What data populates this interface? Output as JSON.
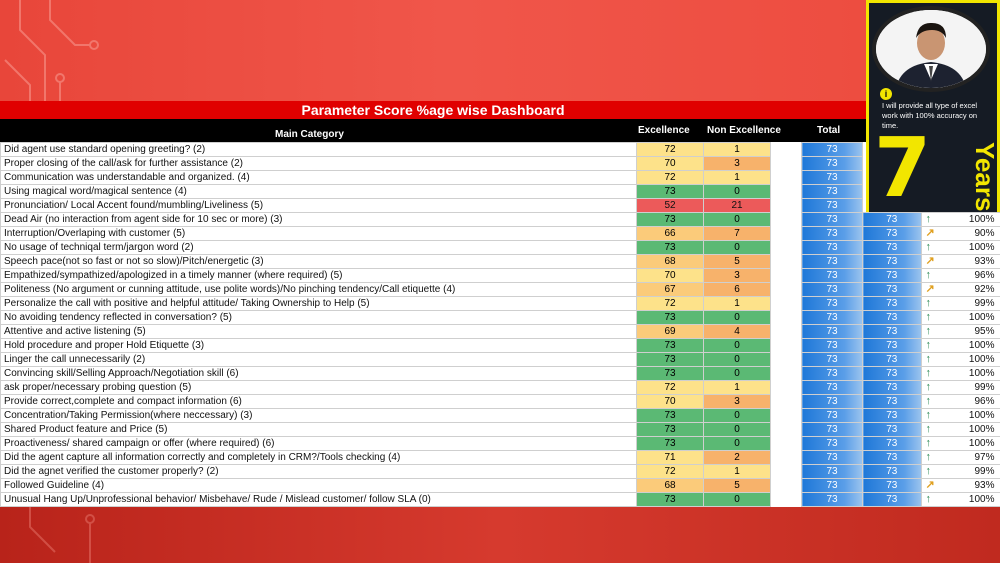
{
  "title": "Parameter Score %age wise Dashboard",
  "headers": {
    "main_category": "Main Category",
    "excellence": "Excellence",
    "non_excellence": "Non Excellence",
    "total": "Total"
  },
  "promo": {
    "info_icon": "i",
    "text": "I will provide all type of excel work with 100% accuracy on time.",
    "number": "7",
    "years": "Years"
  },
  "colors": {
    "header_red": "#e00000",
    "frame_yellow": "#f2e600",
    "total_blue": "#1f78d8",
    "excellence_green": "#5bb974",
    "excellence_yellow": "#fde28a",
    "excellence_red": "#ec5a5a"
  },
  "rows": [
    {
      "category": "Did agent use standard opening greeting? (2)",
      "excellence": "72",
      "non_excellence": "1",
      "total": "73"
    },
    {
      "category": "Proper closing of the call/ask for further assistance (2)",
      "excellence": "70",
      "non_excellence": "3",
      "total": "73"
    },
    {
      "category": "Communication was understandable and organized. (4)",
      "excellence": "72",
      "non_excellence": "1",
      "total": "73"
    },
    {
      "category": "Using magical word/magical sentence (4)",
      "excellence": "73",
      "non_excellence": "0",
      "total": "73"
    },
    {
      "category": "Pronunciation/ Local Accent found/mumbling/Liveliness (5)",
      "excellence": "52",
      "non_excellence": "21",
      "total": "73"
    },
    {
      "category": "Dead Air (no interaction from agent side for 10 sec or more) (3)",
      "excellence": "73",
      "non_excellence": "0",
      "total": "73",
      "total2": "73",
      "percent": "100%",
      "trend": "up"
    },
    {
      "category": "Interruption/Overlaping with customer (5)",
      "excellence": "66",
      "non_excellence": "7",
      "total": "73",
      "total2": "73",
      "percent": "90%",
      "trend": "mid"
    },
    {
      "category": "No usage of techniqal term/jargon word (2)",
      "excellence": "73",
      "non_excellence": "0",
      "total": "73",
      "total2": "73",
      "percent": "100%",
      "trend": "up"
    },
    {
      "category": "Speech pace(not so fast or not so slow)/Pitch/energetic (3)",
      "excellence": "68",
      "non_excellence": "5",
      "total": "73",
      "total2": "73",
      "percent": "93%",
      "trend": "mid"
    },
    {
      "category": "Empathized/sympathized/apologized in a timely manner (where required) (5)",
      "excellence": "70",
      "non_excellence": "3",
      "total": "73",
      "total2": "73",
      "percent": "96%",
      "trend": "up"
    },
    {
      "category": "Politeness (No argument or cunning attitude, use polite words)/No pinching tendency/Call etiquette (4)",
      "excellence": "67",
      "non_excellence": "6",
      "total": "73",
      "total2": "73",
      "percent": "92%",
      "trend": "mid"
    },
    {
      "category": "Personalize the call with positive and helpful attitude/ Taking Ownership to Help (5)",
      "excellence": "72",
      "non_excellence": "1",
      "total": "73",
      "total2": "73",
      "percent": "99%",
      "trend": "up"
    },
    {
      "category": "No avoiding tendency reflected in conversation? (5)",
      "excellence": "73",
      "non_excellence": "0",
      "total": "73",
      "total2": "73",
      "percent": "100%",
      "trend": "up"
    },
    {
      "category": "Attentive and active listening (5)",
      "excellence": "69",
      "non_excellence": "4",
      "total": "73",
      "total2": "73",
      "percent": "95%",
      "trend": "up"
    },
    {
      "category": "Hold procedure and proper Hold Etiquette (3)",
      "excellence": "73",
      "non_excellence": "0",
      "total": "73",
      "total2": "73",
      "percent": "100%",
      "trend": "up"
    },
    {
      "category": "Linger the call unnecessarily (2)",
      "excellence": "73",
      "non_excellence": "0",
      "total": "73",
      "total2": "73",
      "percent": "100%",
      "trend": "up"
    },
    {
      "category": "Convincing skill/Selling Approach/Negotiation skill (6)",
      "excellence": "73",
      "non_excellence": "0",
      "total": "73",
      "total2": "73",
      "percent": "100%",
      "trend": "up"
    },
    {
      "category": "ask proper/necessary probing question (5)",
      "excellence": "72",
      "non_excellence": "1",
      "total": "73",
      "total2": "73",
      "percent": "99%",
      "trend": "up"
    },
    {
      "category": "Provide correct,complete and compact information (6)",
      "excellence": "70",
      "non_excellence": "3",
      "total": "73",
      "total2": "73",
      "percent": "96%",
      "trend": "up"
    },
    {
      "category": "Concentration/Taking Permission(where neccessary) (3)",
      "excellence": "73",
      "non_excellence": "0",
      "total": "73",
      "total2": "73",
      "percent": "100%",
      "trend": "up"
    },
    {
      "category": "Shared Product feature and Price (5)",
      "excellence": "73",
      "non_excellence": "0",
      "total": "73",
      "total2": "73",
      "percent": "100%",
      "trend": "up"
    },
    {
      "category": "Proactiveness/ shared campaign or offer (where required) (6)",
      "excellence": "73",
      "non_excellence": "0",
      "total": "73",
      "total2": "73",
      "percent": "100%",
      "trend": "up"
    },
    {
      "category": "Did the agent capture all information correctly and completely in CRM?/Tools checking (4)",
      "excellence": "71",
      "non_excellence": "2",
      "total": "73",
      "total2": "73",
      "percent": "97%",
      "trend": "up"
    },
    {
      "category": "Did the agnet verified the customer properly? (2)",
      "excellence": "72",
      "non_excellence": "1",
      "total": "73",
      "total2": "73",
      "percent": "99%",
      "trend": "up"
    },
    {
      "category": "Followed Guideline (4)",
      "excellence": "68",
      "non_excellence": "5",
      "total": "73",
      "total2": "73",
      "percent": "93%",
      "trend": "mid"
    },
    {
      "category": "Unusual Hang Up/Unprofessional behavior/ Misbehave/ Rude / Mislead customer/ follow SLA (0)",
      "excellence": "73",
      "non_excellence": "0",
      "total": "73",
      "total2": "73",
      "percent": "100%",
      "trend": "up"
    }
  ]
}
